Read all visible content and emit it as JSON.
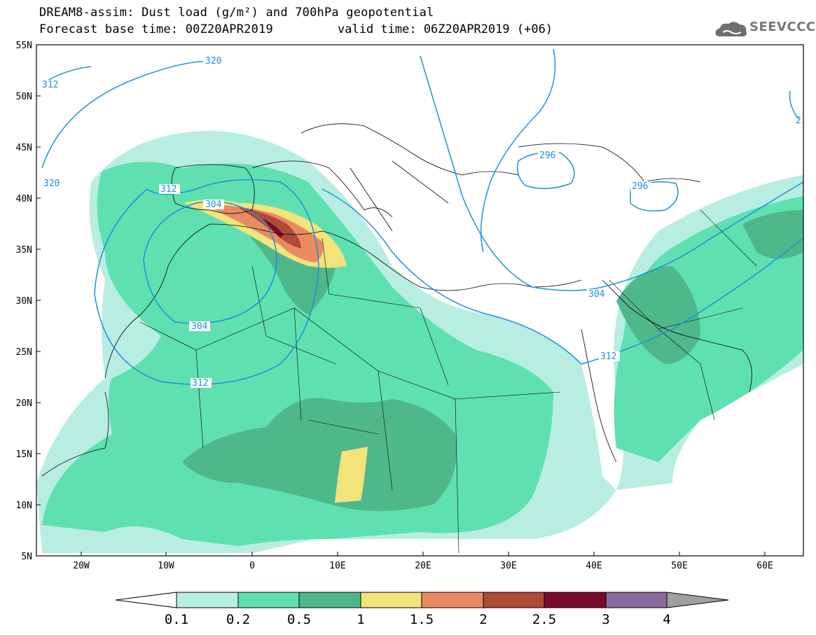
{
  "header": {
    "title_line1": "DREAM8-assim: Dust load (g/m²) and 700hPa geopotential",
    "title_line2_base": "Forecast base time: 00Z20APR2019",
    "title_line2_valid": "valid time: 06Z20APR2019 (+06)",
    "logo_text": "SEEVCCC",
    "logo_icon": "cloud-icon"
  },
  "axes": {
    "lat_labels": [
      "55N",
      "50N",
      "45N",
      "40N",
      "35N",
      "30N",
      "25N",
      "20N",
      "15N",
      "10N",
      "5N"
    ],
    "lon_labels": [
      "20W",
      "10W",
      "0",
      "10E",
      "20E",
      "30E",
      "40E",
      "50E",
      "60E"
    ]
  },
  "contours": {
    "color": "#1e90e0",
    "labels": [
      "320",
      "312",
      "320",
      "312",
      "304",
      "304",
      "312",
      "296",
      "296",
      "304",
      "312",
      "2"
    ]
  },
  "colorbar": {
    "ticks": [
      "0.1",
      "0.2",
      "0.5",
      "1",
      "1.5",
      "2",
      "2.5",
      "3",
      "4"
    ],
    "colors": [
      "#b8eee2",
      "#5fe0b0",
      "#4fb88a",
      "#f2e37a",
      "#e88a62",
      "#b04a38",
      "#780a2a",
      "#8a6aa0",
      "#a0a0a0"
    ]
  }
}
